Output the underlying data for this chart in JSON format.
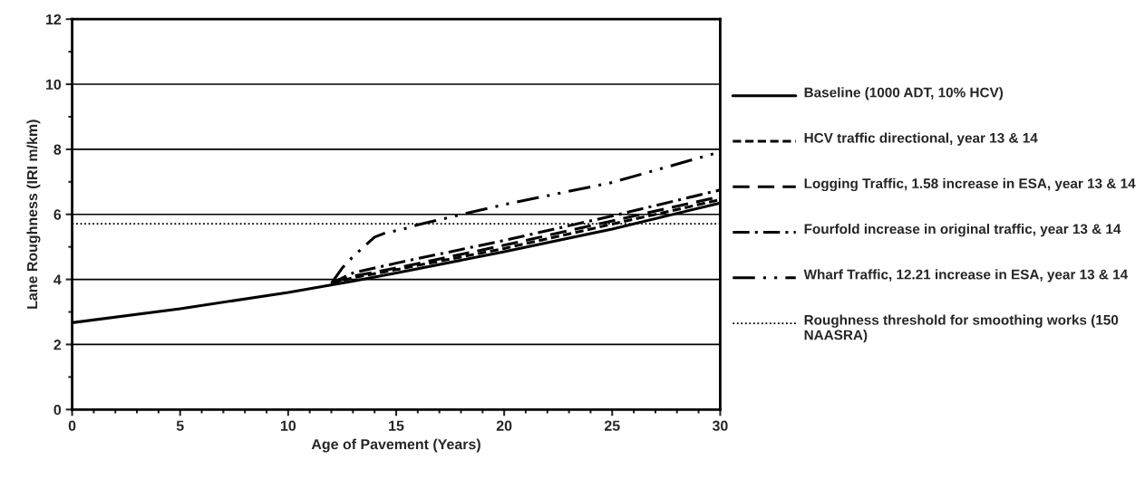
{
  "chart_data": {
    "type": "line",
    "xlabel": "Age of Pavement (Years)",
    "ylabel": "Lane Roughness (IRI m/km)",
    "xlim": [
      0,
      30
    ],
    "ylim": [
      0,
      12
    ],
    "xticks": [
      0,
      {
        "value": 1,
        "label": null
      },
      {
        "value": 2,
        "label": null
      },
      {
        "value": 3,
        "label": null
      },
      {
        "value": 4,
        "label": null
      },
      5,
      {
        "value": 6,
        "label": null
      },
      {
        "value": 7,
        "label": null
      },
      {
        "value": 8,
        "label": null
      },
      {
        "value": 9,
        "label": null
      },
      10,
      {
        "value": 11,
        "label": null
      },
      {
        "value": 12,
        "label": null
      },
      {
        "value": 13,
        "label": null
      },
      {
        "value": 14,
        "label": null
      },
      15,
      {
        "value": 16,
        "label": null
      },
      {
        "value": 17,
        "label": null
      },
      {
        "value": 18,
        "label": null
      },
      {
        "value": 19,
        "label": null
      },
      20,
      {
        "value": 21,
        "label": null
      },
      {
        "value": 22,
        "label": null
      },
      {
        "value": 23,
        "label": null
      },
      {
        "value": 24,
        "label": null
      },
      25,
      {
        "value": 26,
        "label": null
      },
      {
        "value": 27,
        "label": null
      },
      {
        "value": 28,
        "label": null
      },
      {
        "value": 29,
        "label": null
      },
      30
    ],
    "yticks": [
      0,
      {
        "value": 1,
        "label": null
      },
      2,
      {
        "value": 3,
        "label": null
      },
      4,
      {
        "value": 5,
        "label": null
      },
      6,
      {
        "value": 7,
        "label": null
      },
      8,
      {
        "value": 9,
        "label": null
      },
      10,
      {
        "value": 11,
        "label": null
      },
      12
    ],
    "grid": "y",
    "legend": "right",
    "series": [
      {
        "name": "Baseline (1000 ADT, 10% HCV)",
        "color": "#000000",
        "line_style": "solid",
        "x": [
          0,
          5,
          10,
          13,
          15,
          20,
          25,
          30
        ],
        "values": [
          2.67,
          3.1,
          3.6,
          3.95,
          4.2,
          4.85,
          5.55,
          6.35
        ]
      },
      {
        "name": "HCV traffic directional, year 13 & 14",
        "color": "#000000",
        "line_style": "dashed",
        "x": [
          12,
          13,
          15,
          20,
          25,
          30
        ],
        "values": [
          3.88,
          4.05,
          4.3,
          4.95,
          5.7,
          6.45
        ]
      },
      {
        "name": "Logging Traffic, 1.58 increase in ESA, year 13 & 14",
        "color": "#000000",
        "line_style": "longdash",
        "x": [
          12,
          13,
          15,
          20,
          25,
          30
        ],
        "values": [
          3.88,
          4.1,
          4.35,
          5.05,
          5.8,
          6.55
        ]
      },
      {
        "name": "Fourfold increase in original traffic, year 13 & 14",
        "color": "#000000",
        "line_style": "dashdot",
        "x": [
          12,
          13,
          15,
          20,
          25,
          30
        ],
        "values": [
          3.88,
          4.2,
          4.5,
          5.2,
          5.95,
          6.75
        ]
      },
      {
        "name": "Wharf Traffic, 12.21 increase in ESA, year 13 & 14",
        "color": "#000000",
        "line_style": "dashdotdot",
        "x": [
          12,
          12.5,
          13,
          14,
          14.5,
          15.3,
          16,
          20,
          25,
          30
        ],
        "values": [
          3.88,
          4.35,
          4.7,
          5.3,
          5.43,
          5.54,
          5.68,
          6.3,
          6.98,
          7.92
        ]
      }
    ],
    "ref_lines": [
      {
        "axis": "y",
        "value": 5.71,
        "label": "Roughness threshold for smoothing works (150 NAASRA)",
        "color": "#000000",
        "line_style": "dotted"
      }
    ]
  }
}
